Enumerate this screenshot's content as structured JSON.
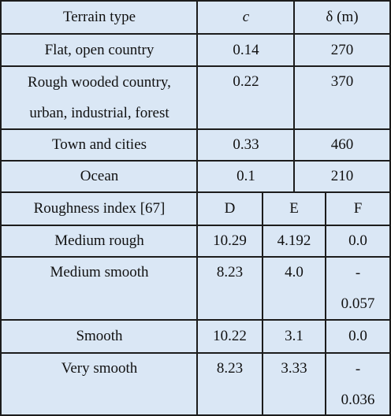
{
  "upper": {
    "headers": [
      "Terrain type",
      "c",
      "δ (m)"
    ],
    "rows": [
      {
        "terrain": "Flat, open country",
        "c": "0.14",
        "delta": "270"
      },
      {
        "terrain_line1": "Rough wooded country,",
        "terrain_line2": "urban, industrial, forest",
        "c": "0.22",
        "delta": "370"
      },
      {
        "terrain": "Town and cities",
        "c": "0.33",
        "delta": "460"
      },
      {
        "terrain": "Ocean",
        "c": "0.1",
        "delta": "210"
      }
    ]
  },
  "lower": {
    "headers": [
      "Roughness index [67]",
      "D",
      "E",
      "F"
    ],
    "rows": [
      {
        "index": "Medium rough",
        "D": "10.29",
        "E": "4.192",
        "F": "0.0"
      },
      {
        "index": "Medium smooth",
        "D": "8.23",
        "E": "4.0",
        "F_line1": "-",
        "F_line2": "0.057"
      },
      {
        "index": "Smooth",
        "D": "10.22",
        "E": "3.1",
        "F": "0.0"
      },
      {
        "index": "Very smooth",
        "D": "8.23",
        "E": "3.33",
        "F_line1": "-",
        "F_line2": "0.036"
      }
    ]
  }
}
